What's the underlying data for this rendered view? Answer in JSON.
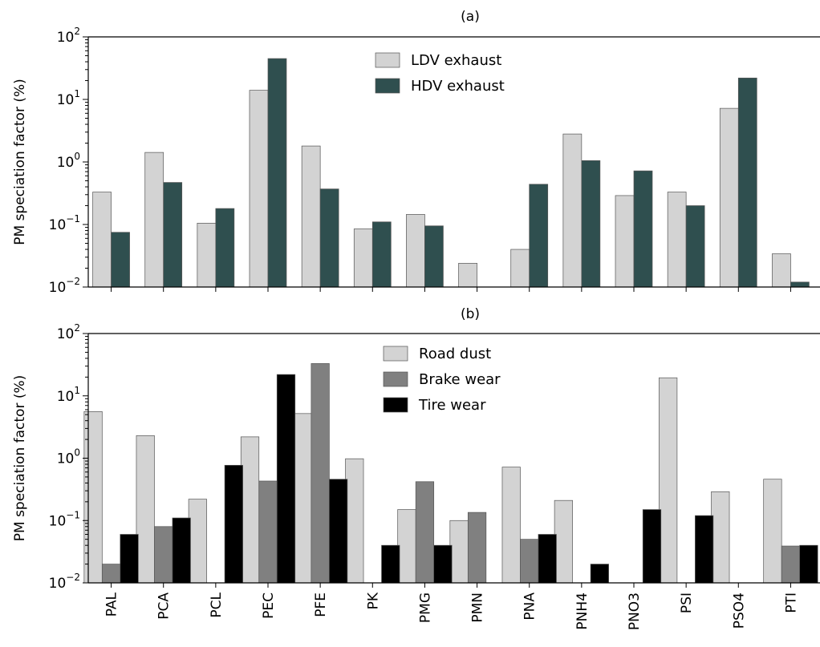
{
  "chart_data": [
    {
      "type": "bar",
      "title": "(a)",
      "ylabel": "PM speciation factor (%)",
      "yscale": "log",
      "ylim": [
        0.01,
        100
      ],
      "yticks": [
        {
          "base": "10",
          "exp": "−2"
        },
        {
          "base": "10",
          "exp": "−1"
        },
        {
          "base": "10",
          "exp": "0"
        },
        {
          "base": "10",
          "exp": "1"
        },
        {
          "base": "10",
          "exp": "2"
        }
      ],
      "legend_position": "top-center",
      "categories": [
        "PAL",
        "PCA",
        "PCL",
        "PEC",
        "PFE",
        "PK",
        "PMG",
        "PMN",
        "PNA",
        "PNH4",
        "PNO3",
        "PSI",
        "PSO4",
        "PTI"
      ],
      "series": [
        {
          "name": "LDV exhaust",
          "color": "#d3d3d3",
          "values": [
            0.33,
            1.42,
            0.105,
            14.0,
            1.8,
            0.085,
            0.145,
            0.024,
            0.04,
            2.8,
            0.29,
            0.33,
            7.2,
            0.034
          ]
        },
        {
          "name": "HDV exhaust",
          "color": "#2f4f4f",
          "values": [
            0.075,
            0.47,
            0.18,
            45.0,
            0.37,
            0.11,
            0.095,
            null,
            0.44,
            1.05,
            0.72,
            0.2,
            22.0,
            0.012
          ]
        }
      ]
    },
    {
      "type": "bar",
      "title": "(b)",
      "ylabel": "PM speciation factor (%)",
      "yscale": "log",
      "ylim": [
        0.01,
        100
      ],
      "yticks": [
        {
          "base": "10",
          "exp": "−2"
        },
        {
          "base": "10",
          "exp": "−1"
        },
        {
          "base": "10",
          "exp": "0"
        },
        {
          "base": "10",
          "exp": "1"
        },
        {
          "base": "10",
          "exp": "2"
        }
      ],
      "legend_position": "top-center",
      "categories": [
        "PAL",
        "PCA",
        "PCL",
        "PEC",
        "PFE",
        "PK",
        "PMG",
        "PMN",
        "PNA",
        "PNH4",
        "PNO3",
        "PSI",
        "PSO4",
        "PTI"
      ],
      "series": [
        {
          "name": "Road dust",
          "color": "#d3d3d3",
          "values": [
            5.6,
            2.3,
            0.22,
            2.2,
            5.2,
            0.98,
            0.15,
            0.1,
            0.72,
            0.21,
            null,
            19.5,
            0.29,
            0.46
          ]
        },
        {
          "name": "Brake wear",
          "color": "#808080",
          "values": [
            0.02,
            0.08,
            null,
            0.43,
            33.0,
            null,
            0.42,
            0.135,
            0.05,
            null,
            null,
            null,
            null,
            0.039
          ]
        },
        {
          "name": "Tire wear",
          "color": "#000000",
          "values": [
            0.06,
            0.11,
            0.77,
            22.0,
            0.46,
            0.04,
            0.04,
            null,
            0.06,
            0.02,
            0.15,
            0.12,
            null,
            0.04
          ]
        }
      ]
    }
  ]
}
